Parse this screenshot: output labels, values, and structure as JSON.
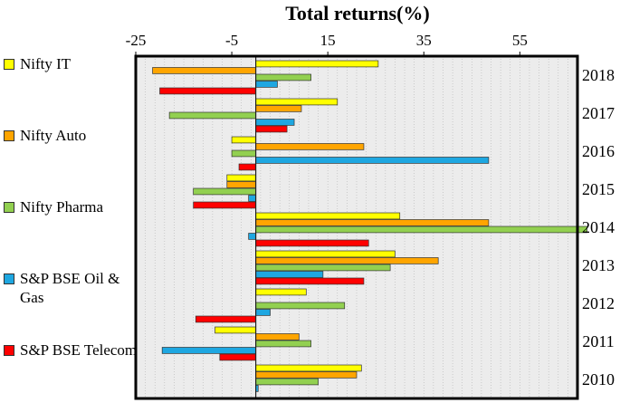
{
  "chart_data": {
    "type": "bar",
    "orientation": "horizontal",
    "title": "Total returns(%)",
    "xlabel": "",
    "ylabel": "",
    "xlim": [
      -25,
      67
    ],
    "xticks": [
      "-25",
      "-5",
      "15",
      "35",
      "55"
    ],
    "grid": "dotted",
    "legend_position": "left",
    "categories": [
      "2018",
      "2017",
      "2016",
      "2015",
      "2014",
      "2013",
      "2012",
      "2011",
      "2010"
    ],
    "series": [
      {
        "name": "Nifty IT",
        "color": "#ffff00",
        "values": [
          25.5,
          17,
          -5,
          -6,
          30,
          29,
          10.5,
          -8.5,
          22
        ]
      },
      {
        "name": "Nifty Auto",
        "color": "#ffa500",
        "values": [
          -21.5,
          9.5,
          22.5,
          -6,
          48.5,
          38,
          0,
          9,
          21
        ]
      },
      {
        "name": "Nifty Pharma",
        "color": "#92d050",
        "values": [
          11.5,
          -18,
          -5,
          -13,
          69,
          28,
          18.5,
          11.5,
          13
        ]
      },
      {
        "name": "S&P BSE Oil & Gas",
        "color": "#1ea7e1",
        "values": [
          4.5,
          8,
          48.5,
          -1.5,
          -1.5,
          14,
          3,
          -19.5,
          0.5
        ]
      },
      {
        "name": "S&P BSE Telecom",
        "color": "#ff0000",
        "values": [
          -20,
          6.5,
          -3.5,
          -13,
          23.5,
          22.5,
          -12.5,
          -7.5,
          0
        ]
      }
    ]
  }
}
